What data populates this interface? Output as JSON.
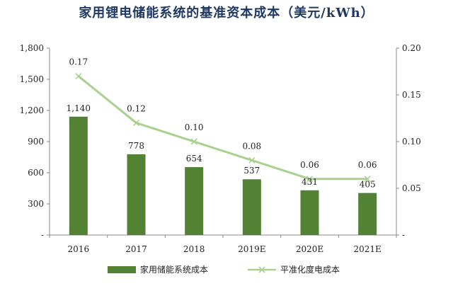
{
  "chart_data": {
    "type": "bar",
    "title": "家用锂电储能系统的基准资本成本（美元/kWh）",
    "categories": [
      "2016",
      "2017",
      "2018",
      "2019E",
      "2020E",
      "2021E"
    ],
    "series": [
      {
        "name": "家用储能系统成本",
        "type": "bar",
        "axis": "left",
        "values": [
          1140,
          778,
          654,
          537,
          431,
          405
        ],
        "labels": [
          "1,140",
          "778",
          "654",
          "537",
          "431",
          "405"
        ],
        "color": "#548235"
      },
      {
        "name": "平准化度电成本",
        "type": "line",
        "axis": "right",
        "values": [
          0.17,
          0.12,
          0.1,
          0.08,
          0.06,
          0.06
        ],
        "labels": [
          "0.17",
          "0.12",
          "0.10",
          "0.08",
          "0.06",
          "0.06"
        ],
        "color": "#a9d18e"
      }
    ],
    "y_left": {
      "ylim": [
        0,
        1800
      ],
      "ticks": [
        0,
        300,
        600,
        900,
        1200,
        1500,
        1800
      ],
      "tick_labels": [
        "-",
        "300",
        "600",
        "900",
        "1,200",
        "1,500",
        "1,800"
      ]
    },
    "y_right": {
      "ylim": [
        0,
        0.2
      ],
      "ticks": [
        0,
        0.05,
        0.1,
        0.15,
        0.2
      ],
      "tick_labels": [
        "-",
        "0.05",
        "0.10",
        "0.15",
        "0.20"
      ]
    },
    "legend_position": "bottom"
  }
}
